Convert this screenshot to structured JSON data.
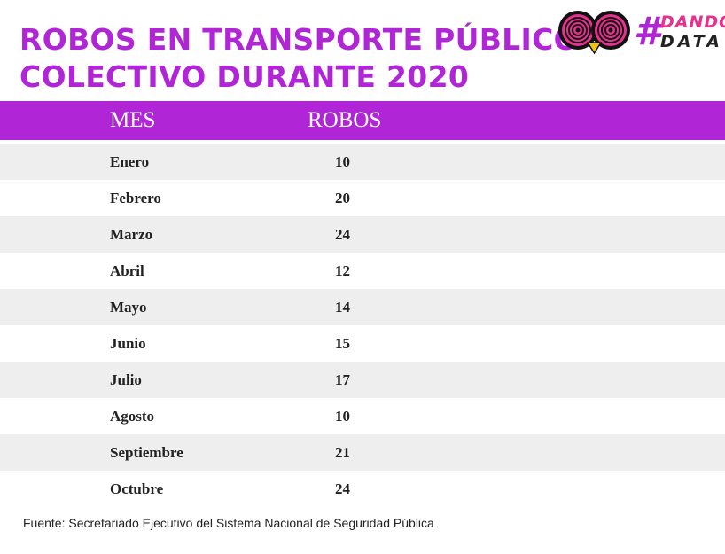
{
  "header": {
    "title_line1": "ROBOS EN TRANSPORTE PÚBLICO",
    "title_line2": "COLECTIVO DURANTE 2020",
    "logo_hash": "#",
    "logo_word1": "DANDO",
    "logo_word2": "DATA"
  },
  "colors": {
    "accent": "#b026d6",
    "pink": "#e8318f",
    "row_alt": "#eeeeee"
  },
  "chart_data": {
    "type": "table",
    "title": "ROBOS EN TRANSPORTE PÚBLICO COLECTIVO DURANTE 2020",
    "columns": [
      "MES",
      "ROBOS"
    ],
    "rows": [
      {
        "mes": "Enero",
        "robos": 10
      },
      {
        "mes": "Febrero",
        "robos": 20
      },
      {
        "mes": "Marzo",
        "robos": 24
      },
      {
        "mes": "Abril",
        "robos": 12
      },
      {
        "mes": "Mayo",
        "robos": 14
      },
      {
        "mes": "Junio",
        "robos": 15
      },
      {
        "mes": "Julio",
        "robos": 17
      },
      {
        "mes": "Agosto",
        "robos": 10
      },
      {
        "mes": "Septiembre",
        "robos": 21
      },
      {
        "mes": "Octubre",
        "robos": 24
      }
    ]
  },
  "footer": {
    "source": "Fuente: Secretariado Ejecutivo del Sistema Nacional de Seguridad Pública"
  }
}
